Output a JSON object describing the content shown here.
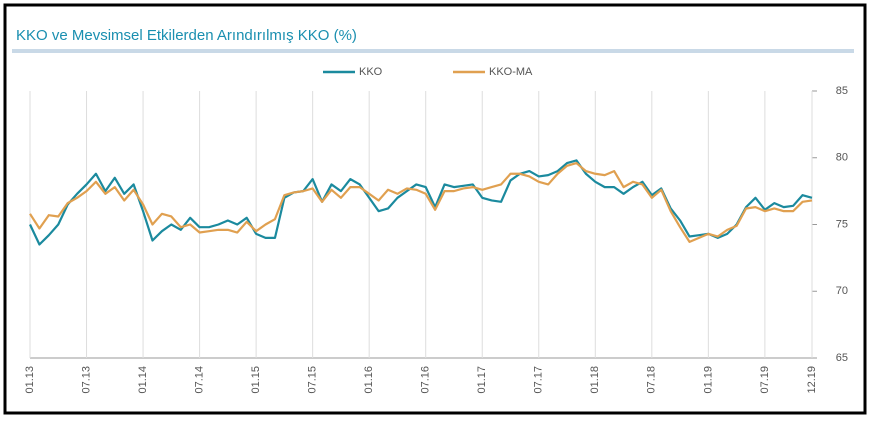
{
  "chart_data": {
    "type": "line",
    "title": "KKO ve Mevsimsel Etkilerden Arındırılmış KKO (%)",
    "categories": [
      "01.13",
      null,
      null,
      null,
      null,
      null,
      "07.13",
      null,
      null,
      null,
      null,
      null,
      "01.14",
      null,
      null,
      null,
      null,
      null,
      "07.14",
      null,
      null,
      null,
      null,
      null,
      "01.15",
      null,
      null,
      null,
      null,
      null,
      "07.15",
      null,
      null,
      null,
      null,
      null,
      "01.16",
      null,
      null,
      null,
      null,
      null,
      "07.16",
      null,
      null,
      null,
      null,
      null,
      "01.17",
      null,
      null,
      null,
      null,
      null,
      "07.17",
      null,
      null,
      null,
      null,
      null,
      "01.18",
      null,
      null,
      null,
      null,
      null,
      "07.18",
      null,
      null,
      null,
      null,
      null,
      "01.19",
      null,
      null,
      null,
      null,
      null,
      "07.19",
      null,
      null,
      null,
      null,
      "12.19"
    ],
    "series": [
      {
        "name": "KKO",
        "color": "#1b8a9e",
        "values": [
          75.0,
          73.5,
          74.2,
          75.0,
          76.5,
          77.3,
          78.0,
          78.8,
          77.5,
          78.5,
          77.3,
          78.0,
          76.0,
          73.8,
          74.5,
          75.0,
          74.6,
          75.5,
          74.8,
          74.8,
          75.0,
          75.3,
          75.0,
          75.5,
          74.3,
          74.0,
          74.0,
          77.0,
          77.4,
          77.5,
          78.4,
          76.7,
          78.0,
          77.5,
          78.4,
          78.0,
          77.0,
          76.0,
          76.2,
          77.0,
          77.5,
          78.0,
          77.8,
          76.3,
          78.0,
          77.8,
          77.9,
          78.0,
          77.0,
          76.8,
          76.7,
          78.3,
          78.8,
          79.0,
          78.6,
          78.7,
          79.0,
          79.6,
          79.8,
          78.8,
          78.2,
          77.8,
          77.8,
          77.3,
          77.8,
          78.2,
          77.2,
          77.7,
          76.2,
          75.3,
          74.1,
          74.2,
          74.3,
          74.0,
          74.3,
          75.0,
          76.3,
          77.0,
          76.1,
          76.6,
          76.3,
          76.4,
          77.2,
          77.0
        ]
      },
      {
        "name": "KKO-MA",
        "color": "#e0a050",
        "values": [
          75.8,
          74.7,
          75.7,
          75.6,
          76.6,
          77.0,
          77.5,
          78.2,
          77.3,
          77.8,
          76.8,
          77.6,
          76.5,
          75.0,
          75.8,
          75.6,
          74.8,
          75.0,
          74.4,
          74.5,
          74.6,
          74.6,
          74.4,
          75.2,
          74.5,
          75.0,
          75.4,
          77.2,
          77.4,
          77.5,
          77.7,
          76.7,
          77.6,
          77.0,
          77.8,
          77.8,
          77.3,
          76.8,
          77.6,
          77.3,
          77.7,
          77.6,
          77.3,
          76.1,
          77.5,
          77.5,
          77.7,
          77.8,
          77.6,
          77.8,
          78.0,
          78.8,
          78.8,
          78.6,
          78.2,
          78.0,
          78.8,
          79.4,
          79.6,
          79.0,
          78.8,
          78.7,
          79.0,
          77.8,
          78.2,
          78.0,
          77.0,
          77.6,
          76.0,
          74.8,
          73.7,
          74.0,
          74.3,
          74.1,
          74.6,
          74.9,
          76.2,
          76.3,
          76.0,
          76.2,
          76.0,
          76.0,
          76.7,
          76.8
        ]
      }
    ],
    "ylim": [
      65,
      85
    ],
    "yticks": [
      65,
      70,
      75,
      80,
      85
    ],
    "grid": true,
    "legend": "top"
  }
}
